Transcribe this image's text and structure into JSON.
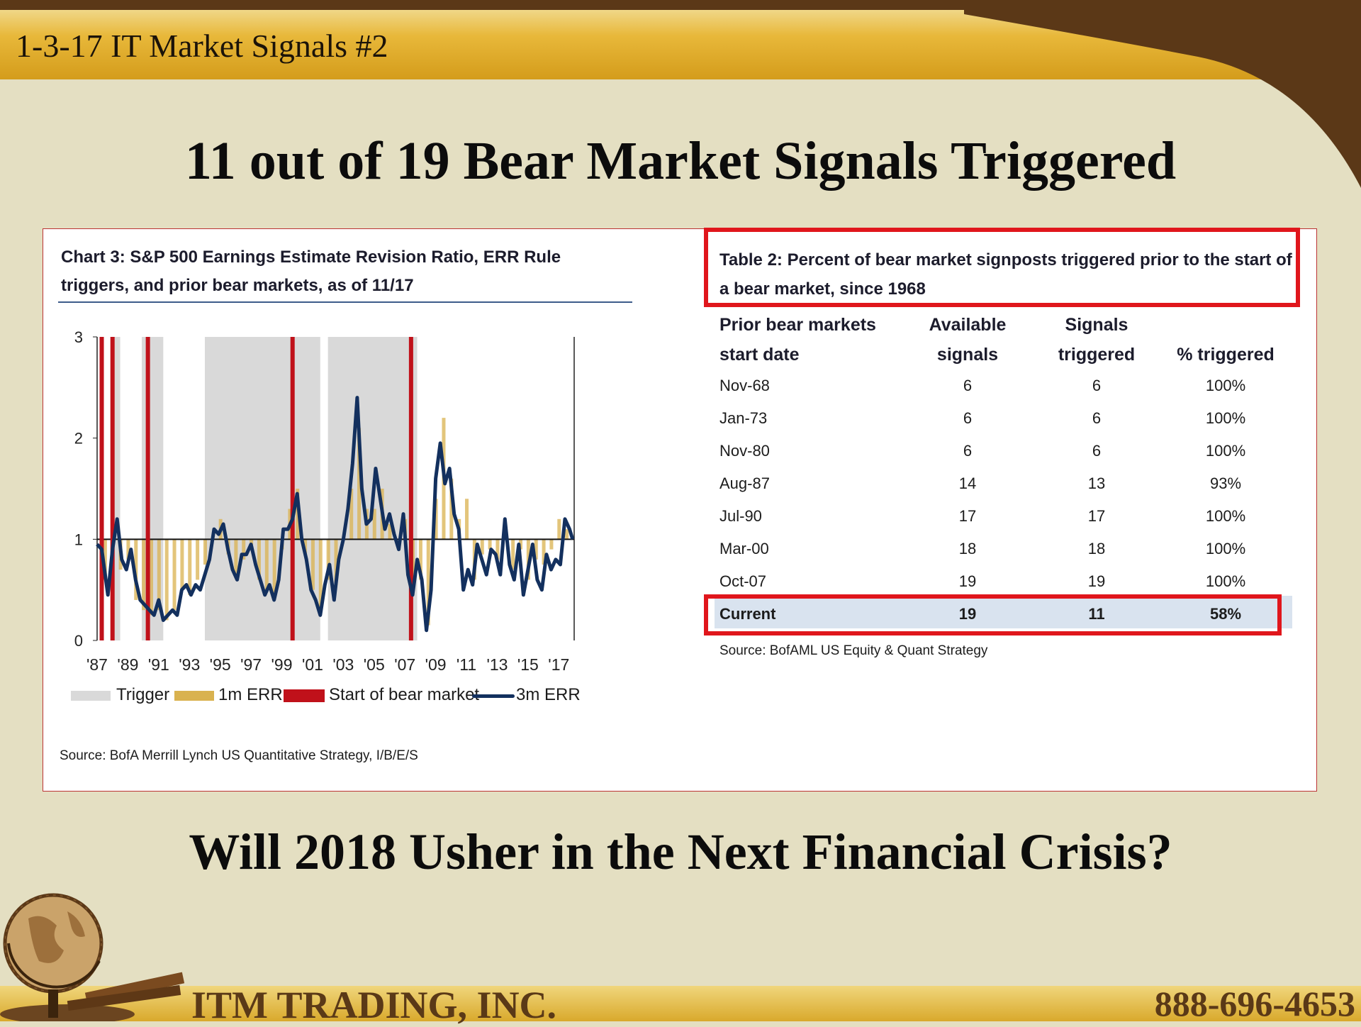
{
  "slide": {
    "label": "1-3-17 IT Market Signals #2",
    "title": "11 out of 19 Bear Market Signals Triggered",
    "question": "Will 2018 Usher in the Next Financial Crisis?",
    "footer_company": "ITM TRADING, INC.",
    "footer_phone": "888-696-4653"
  },
  "chart_data": [
    {
      "type": "line",
      "title": "Chart 3: S&P 500 Earnings Estimate Revision Ratio, ERR Rule triggers, and prior bear markets, as of 11/17",
      "source": "Source: BofA Merrill Lynch US Quantitative Strategy, I/B/E/S",
      "xlim": [
        1987,
        2018
      ],
      "ylim": [
        0,
        3
      ],
      "y_ticks": [
        "0",
        "1",
        "2",
        "3"
      ],
      "x_ticks": [
        "'87",
        "'89",
        "'91",
        "'93",
        "'95",
        "'97",
        "'99",
        "'01",
        "'03",
        "'05",
        "'07",
        "'09",
        "'11",
        "'13",
        "'15",
        "'17"
      ],
      "legend": [
        "Trigger",
        "1m ERR",
        "Start of bear market",
        "3m ERR"
      ],
      "legend_position": "bottom",
      "trigger_periods": [
        [
          1988.0,
          1988.5
        ],
        [
          1989.9,
          1991.3
        ],
        [
          1994.0,
          2001.5
        ],
        [
          2002.0,
          2007.8
        ]
      ],
      "bear_market_starts": [
        1987.3,
        1988.0,
        1990.3,
        1999.7,
        2007.4
      ],
      "series": [
        {
          "name": "3m ERR",
          "color": "#13305e",
          "x": [
            1987.0,
            1987.3,
            1987.7,
            1988.0,
            1988.3,
            1988.6,
            1988.9,
            1989.2,
            1989.5,
            1989.8,
            1990.1,
            1990.4,
            1990.7,
            1991.0,
            1991.3,
            1991.6,
            1991.9,
            1992.2,
            1992.5,
            1992.8,
            1993.1,
            1993.4,
            1993.7,
            1994.0,
            1994.3,
            1994.6,
            1994.9,
            1995.2,
            1995.5,
            1995.8,
            1996.1,
            1996.4,
            1996.7,
            1997.0,
            1997.3,
            1997.6,
            1997.9,
            1998.2,
            1998.5,
            1998.8,
            1999.1,
            1999.4,
            1999.7,
            2000.0,
            2000.3,
            2000.6,
            2000.9,
            2001.2,
            2001.5,
            2001.8,
            2002.1,
            2002.4,
            2002.7,
            2003.0,
            2003.3,
            2003.6,
            2003.9,
            2004.2,
            2004.5,
            2004.8,
            2005.1,
            2005.4,
            2005.7,
            2006.0,
            2006.3,
            2006.6,
            2006.9,
            2007.2,
            2007.5,
            2007.8,
            2008.1,
            2008.4,
            2008.7,
            2009.0,
            2009.3,
            2009.6,
            2009.9,
            2010.2,
            2010.5,
            2010.8,
            2011.1,
            2011.4,
            2011.7,
            2012.0,
            2012.3,
            2012.6,
            2012.9,
            2013.2,
            2013.5,
            2013.8,
            2014.1,
            2014.4,
            2014.7,
            2015.0,
            2015.3,
            2015.6,
            2015.9,
            2016.2,
            2016.5,
            2016.8,
            2017.1,
            2017.4,
            2017.7,
            2017.9
          ],
          "values": [
            0.95,
            0.9,
            0.45,
            0.9,
            1.2,
            0.8,
            0.7,
            0.9,
            0.6,
            0.4,
            0.35,
            0.3,
            0.25,
            0.4,
            0.2,
            0.25,
            0.3,
            0.25,
            0.5,
            0.55,
            0.45,
            0.55,
            0.5,
            0.65,
            0.8,
            1.1,
            1.05,
            1.15,
            0.9,
            0.7,
            0.6,
            0.85,
            0.85,
            0.95,
            0.75,
            0.6,
            0.45,
            0.55,
            0.4,
            0.6,
            1.1,
            1.1,
            1.2,
            1.45,
            1.0,
            0.8,
            0.5,
            0.4,
            0.25,
            0.55,
            0.75,
            0.4,
            0.8,
            1.0,
            1.3,
            1.75,
            2.4,
            1.5,
            1.15,
            1.2,
            1.7,
            1.4,
            1.1,
            1.25,
            1.05,
            0.9,
            1.25,
            0.65,
            0.45,
            0.8,
            0.6,
            0.1,
            0.5,
            1.6,
            1.95,
            1.55,
            1.7,
            1.25,
            1.1,
            0.5,
            0.7,
            0.55,
            0.95,
            0.8,
            0.65,
            0.9,
            0.85,
            0.65,
            1.2,
            0.75,
            0.6,
            0.95,
            0.45,
            0.7,
            0.95,
            0.6,
            0.5,
            0.85,
            0.7,
            0.8,
            0.75,
            1.2,
            1.1,
            1.0
          ]
        },
        {
          "name": "1m ERR",
          "color": "#d9b24f",
          "x": [
            1987.0,
            1987.5,
            1988.0,
            1988.5,
            1989.0,
            1989.5,
            1990.0,
            1990.5,
            1991.0,
            1991.5,
            1992.0,
            1992.5,
            1993.0,
            1993.5,
            1994.0,
            1994.5,
            1995.0,
            1995.5,
            1996.0,
            1996.5,
            1997.0,
            1997.5,
            1998.0,
            1998.5,
            1999.0,
            1999.5,
            2000.0,
            2000.5,
            2001.0,
            2001.5,
            2002.0,
            2002.5,
            2003.0,
            2003.5,
            2004.0,
            2004.5,
            2005.0,
            2005.5,
            2006.0,
            2006.5,
            2007.0,
            2007.5,
            2008.0,
            2008.5,
            2009.0,
            2009.5,
            2010.0,
            2010.5,
            2011.0,
            2011.5,
            2012.0,
            2012.5,
            2013.0,
            2013.5,
            2014.0,
            2014.5,
            2015.0,
            2015.5,
            2016.0,
            2016.5,
            2017.0,
            2017.5
          ],
          "values": [
            1.0,
            0.6,
            1.1,
            0.7,
            0.8,
            0.4,
            0.3,
            0.25,
            0.3,
            0.2,
            0.3,
            0.5,
            0.45,
            0.6,
            0.75,
            1.0,
            1.2,
            0.85,
            0.65,
            0.8,
            0.95,
            0.6,
            0.5,
            0.45,
            0.9,
            1.3,
            1.5,
            0.85,
            0.5,
            0.3,
            0.6,
            0.55,
            1.0,
            1.5,
            2.1,
            1.3,
            1.3,
            1.5,
            1.15,
            1.0,
            1.2,
            0.5,
            0.6,
            0.15,
            1.4,
            2.2,
            1.6,
            1.2,
            1.4,
            0.6,
            0.85,
            0.9,
            0.8,
            1.05,
            0.7,
            0.9,
            0.6,
            0.8,
            0.75,
            0.9,
            1.2,
            1.1
          ]
        }
      ]
    },
    {
      "type": "table",
      "title": "Table 2: Percent of bear market signposts triggered prior to the start of a bear market, since 1968",
      "source": "Source: BofAML US Equity & Quant Strategy",
      "columns": [
        [
          "Prior bear markets",
          "start date"
        ],
        [
          "Available",
          "signals"
        ],
        [
          "Signals",
          "triggered"
        ],
        [
          "",
          "% triggered"
        ]
      ],
      "rows": [
        [
          "Nov-68",
          "6",
          "6",
          "100%"
        ],
        [
          "Jan-73",
          "6",
          "6",
          "100%"
        ],
        [
          "Nov-80",
          "6",
          "6",
          "100%"
        ],
        [
          "Aug-87",
          "14",
          "13",
          "93%"
        ],
        [
          "Jul-90",
          "17",
          "17",
          "100%"
        ],
        [
          "Mar-00",
          "18",
          "18",
          "100%"
        ],
        [
          "Oct-07",
          "19",
          "19",
          "100%"
        ],
        [
          "Current",
          "19",
          "11",
          "58%"
        ]
      ],
      "highlight_row": "Current"
    }
  ]
}
